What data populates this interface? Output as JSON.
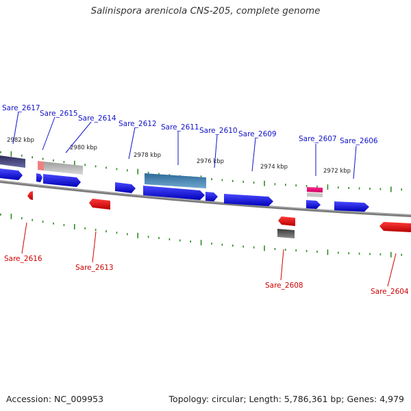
{
  "title": "Salinispora arenicola CNS-205, complete genome",
  "footer": {
    "accession_label": "Accession:",
    "accession": "NC_009953",
    "topology_label": "Topology:",
    "topology": "circular",
    "length_label": "Length:",
    "length": "5,786,361 bp",
    "genes_label": "Genes:",
    "genes": "4,979"
  },
  "colors": {
    "forward_label": "#1010c8",
    "reverse_label": "#cc0000",
    "forward_gene": "#1414e6",
    "reverse_gene": "#e60000",
    "tick": "#2e8b22",
    "backbone": "#808080"
  },
  "ticks": [
    "2982 kbp",
    "2980 kbp",
    "2978 kbp",
    "2976 kbp",
    "2974 kbp",
    "2972 kbp"
  ],
  "forward_genes": [
    "Sare_2617",
    "Sare_2615",
    "Sare_2614",
    "Sare_2612",
    "Sare_2611",
    "Sare_2610",
    "Sare_2609",
    "Sare_2607",
    "Sare_2606"
  ],
  "reverse_genes": [
    "Sare_2616",
    "Sare_2613",
    "Sare_2608",
    "Sare_2604"
  ]
}
